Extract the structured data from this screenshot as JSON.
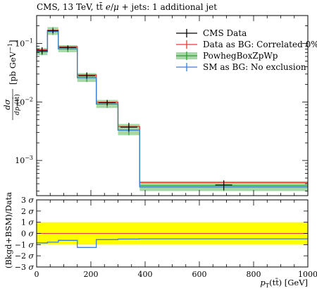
{
  "chart_data": [
    {
      "type": "line",
      "title": "CMS, 13 TeV, tt̄ e/μ + jets: 1 additional jet",
      "title_parts": [
        "CMS, 13 TeV, t",
        "t",
        "¯",
        " ",
        "e",
        "/",
        "μ",
        " + jets: 1 additional jet"
      ],
      "ylabel_parts": [
        "dσ",
        "dp",
        "T",
        "(tt̄)",
        "[pb GeV",
        "−1",
        "]"
      ],
      "y_scale": "log",
      "xlim": [
        0,
        1000
      ],
      "ylim": [
        0.00025,
        0.3
      ],
      "bin_edges": [
        0,
        40,
        80,
        150,
        220,
        300,
        380,
        1000
      ],
      "series": [
        {
          "name": "CMS Data",
          "style": "points",
          "color": "#000000",
          "values": [
            0.075,
            0.165,
            0.085,
            0.028,
            0.0097,
            0.0037,
            0.00038
          ],
          "err_up": [
            0.086,
            0.18,
            0.092,
            0.032,
            0.0108,
            0.0044,
            0.00045
          ],
          "err_down": [
            0.066,
            0.15,
            0.078,
            0.025,
            0.0087,
            0.0031,
            0.00031
          ]
        },
        {
          "name": "Data as BG: Correlated 0%",
          "style": "step",
          "color": "#e8392f",
          "values": [
            0.078,
            0.168,
            0.088,
            0.029,
            0.0099,
            0.0038,
            0.00042
          ],
          "err_up": [
            0.084,
            0.176,
            0.092,
            0.031,
            0.0105,
            0.0041,
            0.00046
          ],
          "err_down": [
            0.072,
            0.16,
            0.084,
            0.027,
            0.0093,
            0.0035,
            0.00038
          ]
        },
        {
          "name": "PowhegBoxZpWp",
          "style": "step-band",
          "color": "#2ca02c",
          "band_color": "#a6d7a6",
          "values": [
            0.072,
            0.16,
            0.081,
            0.026,
            0.0092,
            0.0033,
            0.00037
          ],
          "band_up": [
            0.083,
            0.19,
            0.093,
            0.031,
            0.0108,
            0.0042,
            0.00044
          ],
          "band_down": [
            0.063,
            0.14,
            0.071,
            0.022,
            0.0079,
            0.0027,
            0.0003
          ]
        },
        {
          "name": "SM as BG: No exclusion",
          "style": "step",
          "color": "#3a7fd5",
          "values": [
            0.072,
            0.16,
            0.081,
            0.026,
            0.0092,
            0.0033,
            0.00035
          ],
          "err_up": [
            0.078,
            0.17,
            0.086,
            0.028,
            0.0097,
            0.0036,
            0.00036
          ],
          "err_down": [
            0.066,
            0.15,
            0.076,
            0.024,
            0.0087,
            0.003,
            0.00034
          ]
        }
      ],
      "x_ticks": [
        0,
        200,
        400,
        600,
        800,
        1000
      ],
      "y_ticks": [
        {
          "value": 0.001,
          "mantissa": "10",
          "exp": "−3"
        },
        {
          "value": 0.01,
          "mantissa": "10",
          "exp": "−2"
        },
        {
          "value": 0.1,
          "mantissa": "10",
          "exp": "−1"
        }
      ],
      "legend_position": "top-right"
    },
    {
      "type": "line",
      "xlabel_parts": [
        "p",
        "T",
        "(t",
        "t",
        "¯",
        ")",
        " [GeV]"
      ],
      "ylabel": "(Bkgd+BSM)/Data",
      "xlim": [
        0,
        1000
      ],
      "ylim": [
        -3,
        3
      ],
      "x_ticks": [
        0,
        200,
        400,
        600,
        800,
        1000
      ],
      "y_ticks": [
        {
          "value": 3,
          "label": "3 σ"
        },
        {
          "value": 2,
          "label": "2 σ"
        },
        {
          "value": 1,
          "label": "1 σ"
        },
        {
          "value": 0,
          "label": "0 σ"
        },
        {
          "value": -1,
          "label": "−1 σ"
        },
        {
          "value": -2,
          "label": "−2 σ"
        },
        {
          "value": -3,
          "label": "−3 σ"
        }
      ],
      "band": {
        "from": -1,
        "to": 1,
        "color": "#ffff00"
      },
      "zero_line_color": "#e8392f",
      "bin_edges": [
        0,
        40,
        80,
        150,
        220,
        300,
        380,
        1000
      ],
      "series": [
        {
          "name": "SM as BG: No exclusion",
          "color": "#3a7fd5",
          "values": [
            -0.85,
            -0.78,
            -0.62,
            -1.25,
            -0.55,
            -0.5,
            -0.48
          ]
        }
      ]
    }
  ]
}
